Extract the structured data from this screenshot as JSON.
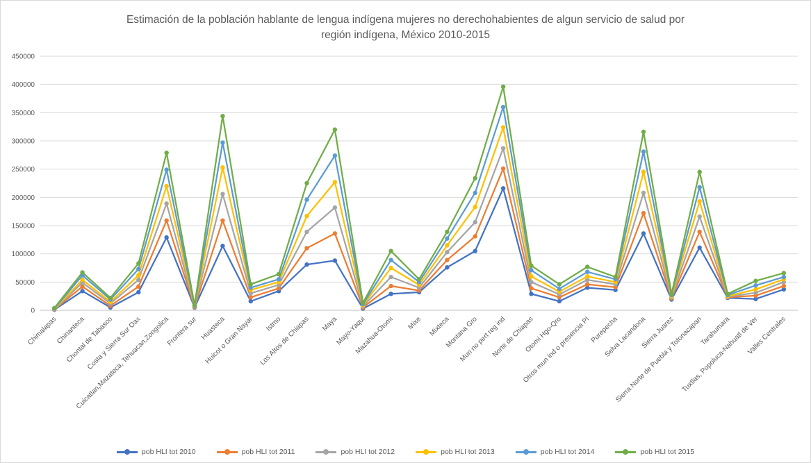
{
  "chart_data": {
    "type": "line",
    "title_lines": [
      "Estimación de la población hablante de lengua indígena mujeres no derechohabientes de algun servicio de salud por",
      "región indígena, México 2010-2015"
    ],
    "xlabel": "",
    "ylabel": "",
    "ylim": [
      0,
      450000
    ],
    "yticks": [
      "0",
      "50000",
      "100000",
      "150000",
      "200000",
      "250000",
      "300000",
      "350000",
      "400000",
      "450000"
    ],
    "grid": true,
    "legend_position": "bottom",
    "categories": [
      "Chimalapas",
      "Chinanteca",
      "Chontal de Tabasco",
      "Costa y Sierra Sur Oax",
      "Cuicatlan,Mazateca, Tehuacan,Zongolica",
      "Frontera sur",
      "Huasteca",
      "Huicot o Gran Nayar",
      "Istmo",
      "Los Altos de Chiapas",
      "Maya",
      "Mayo-Yaqui",
      "Mazahua-Otomi",
      "Mixe",
      "Mixteca",
      "Montana Gro",
      "Mun no pert reg ind",
      "Norte de Chiapas",
      "Otomi Hgo-Qro",
      "Otros mun ind o presencia PI",
      "Purepecha",
      "Selva Lacandona",
      "Sierra Juarez",
      "Sierra Norte de Puebla y Totonacapan",
      "Tarahumara",
      "Tuxtlas, Popoluca-Nahuatl de Ver",
      "Valles Centrales"
    ],
    "series": [
      {
        "name": "pob HLI tot 2010",
        "color": "#4472c4",
        "values": [
          1000,
          34000,
          5000,
          32000,
          129000,
          5000,
          114000,
          16000,
          34000,
          81000,
          88000,
          3000,
          29000,
          32000,
          76000,
          105000,
          216000,
          29000,
          16000,
          40000,
          36000,
          136000,
          19000,
          111000,
          22000,
          20000,
          37000
        ]
      },
      {
        "name": "pob HLI tot 2011",
        "color": "#ed7d31",
        "values": [
          1500,
          42000,
          8000,
          42000,
          159000,
          6000,
          159000,
          23000,
          39000,
          110000,
          136000,
          5000,
          43000,
          35000,
          89000,
          131000,
          251000,
          39000,
          23000,
          46000,
          41000,
          172000,
          21000,
          139000,
          23000,
          26000,
          43000
        ]
      },
      {
        "name": "pob HLI tot 2012",
        "color": "#a5a5a5",
        "values": [
          2000,
          49000,
          12000,
          54000,
          189000,
          7000,
          206000,
          30000,
          45000,
          139000,
          182000,
          7000,
          59000,
          40000,
          103000,
          156000,
          287000,
          50000,
          28000,
          54000,
          46000,
          208000,
          23000,
          166000,
          24000,
          31000,
          50000
        ]
      },
      {
        "name": "pob HLI tot 2013",
        "color": "#ffc000",
        "values": [
          2500,
          54000,
          15000,
          62000,
          220000,
          7500,
          253000,
          36000,
          50000,
          167000,
          227000,
          9000,
          75000,
          45000,
          115000,
          183000,
          324000,
          60000,
          33000,
          60000,
          50000,
          245000,
          25000,
          193000,
          25000,
          37000,
          55000
        ]
      },
      {
        "name": "pob HLI tot 2014",
        "color": "#5b9bd5",
        "values": [
          3000,
          62000,
          19000,
          73000,
          249000,
          8000,
          297000,
          40000,
          55000,
          196000,
          274000,
          11000,
          89000,
          50000,
          127000,
          208000,
          360000,
          71000,
          38000,
          68000,
          55000,
          281000,
          27000,
          218000,
          27000,
          44000,
          59000
        ]
      },
      {
        "name": "pob HLI tot 2015",
        "color": "#70ad47",
        "values": [
          4000,
          67000,
          22000,
          83000,
          279000,
          9000,
          344000,
          46000,
          64000,
          225000,
          320000,
          13000,
          105000,
          55000,
          139000,
          234000,
          396000,
          79000,
          46000,
          77000,
          59000,
          316000,
          29000,
          245000,
          29000,
          52000,
          66000
        ]
      }
    ]
  }
}
